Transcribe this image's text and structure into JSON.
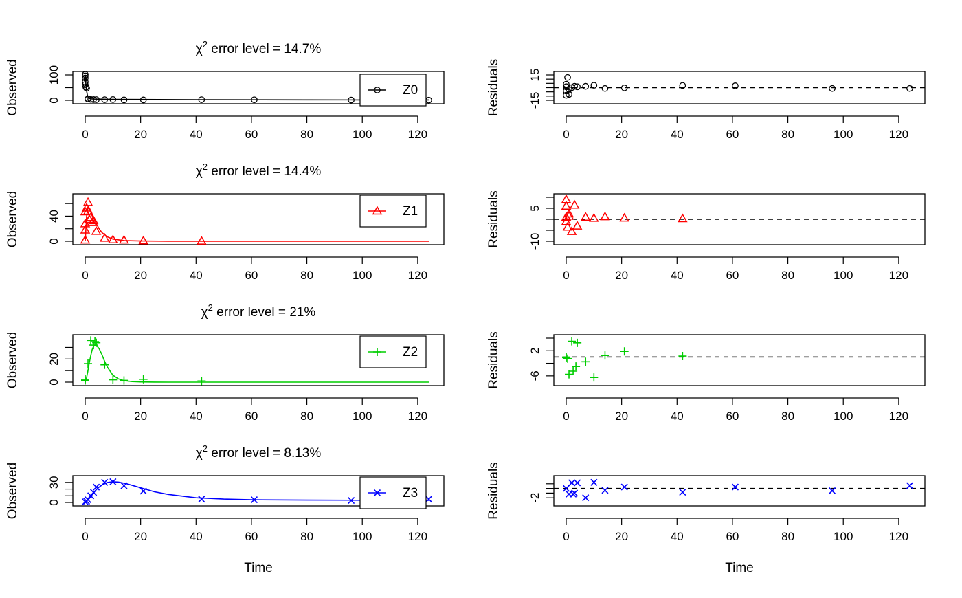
{
  "chart_data": [
    {
      "type": "scatter",
      "panel": "observed",
      "title_prefix": "χ",
      "title_superscript": "2",
      "title_text": " error level = 14.7%",
      "xlabel": "",
      "ylabel": "Observed",
      "xlim": [
        0,
        124
      ],
      "ylim": [
        0,
        100
      ],
      "x_ticks": [
        "0",
        "20",
        "40",
        "60",
        "80",
        "100",
        "120"
      ],
      "y_ticks": [
        "0",
        "50",
        "100"
      ],
      "y_tick_values": [
        0,
        50,
        100
      ],
      "y_tick_labels": [
        "0",
        "",
        "100"
      ],
      "legend": {
        "label": "Z0",
        "position": "top-right"
      },
      "color": "#000000",
      "symbol": "circle",
      "series": [
        {
          "name": "Z0",
          "x": [
            0,
            0,
            0,
            0,
            0,
            0.25,
            0.5,
            1,
            1,
            2,
            3,
            4,
            7,
            10,
            14,
            21,
            42,
            61,
            96,
            124
          ],
          "y": [
            102,
            96,
            88,
            72,
            62,
            52,
            48,
            6,
            5,
            3.5,
            3,
            2.8,
            2.6,
            3.1,
            1.8,
            1.6,
            2.6,
            2.1,
            1.1,
            0.7
          ]
        }
      ],
      "fit_line": {
        "x": [
          0,
          0.25,
          0.5,
          0.75,
          1,
          1.5,
          2,
          3,
          4,
          6,
          10,
          20,
          40,
          60,
          80,
          100,
          124
        ],
        "y": [
          100,
          62,
          38,
          22,
          13,
          7.5,
          6,
          5.2,
          4.9,
          4.5,
          4.0,
          3.4,
          2.6,
          2.2,
          1.9,
          1.7,
          1.5
        ]
      }
    },
    {
      "type": "scatter",
      "panel": "residuals",
      "title_text": "",
      "xlabel": "",
      "ylabel": "Residuals",
      "xlim": [
        0,
        124
      ],
      "ylim": [
        -15,
        15
      ],
      "x_ticks": [
        "0",
        "20",
        "40",
        "60",
        "80",
        "100",
        "120"
      ],
      "y_ticks": [
        "-15",
        "15"
      ],
      "y_tick_values": [
        -15,
        -10,
        -5,
        0,
        5,
        10,
        15
      ],
      "y_tick_labels": [
        "-15",
        "",
        "",
        "",
        "",
        "",
        "15"
      ],
      "zero_line": 0,
      "color": "#000000",
      "symbol": "circle",
      "series": [
        {
          "name": "Z0",
          "x": [
            0,
            0,
            0,
            0,
            0.5,
            1,
            1,
            2,
            3,
            4,
            7,
            10,
            14,
            21,
            42,
            61,
            96,
            124
          ],
          "y": [
            -9,
            -4,
            1,
            4,
            12,
            -8,
            -2,
            0,
            1.5,
            1,
            1.5,
            2.7,
            -1,
            -0.3,
            2.5,
            2.1,
            -1,
            -1
          ]
        }
      ]
    },
    {
      "type": "scatter",
      "panel": "observed",
      "title_prefix": "χ",
      "title_superscript": "2",
      "title_text": " error level = 14.4%",
      "xlabel": "",
      "ylabel": "Observed",
      "xlim": [
        0,
        124
      ],
      "ylim": [
        0,
        70
      ],
      "x_ticks": [
        "0",
        "20",
        "40",
        "60",
        "80",
        "100",
        "120"
      ],
      "y_ticks": [
        "0",
        "40"
      ],
      "y_tick_values": [
        0,
        20,
        40,
        60
      ],
      "y_tick_labels": [
        "0",
        "",
        "40",
        ""
      ],
      "legend": {
        "label": "Z1",
        "position": "top-right"
      },
      "color": "#ff0000",
      "symbol": "triangle",
      "series": [
        {
          "name": "Z1",
          "x": [
            0,
            0,
            0,
            0,
            0.5,
            1,
            1,
            1.5,
            2,
            2.5,
            3,
            4,
            7,
            10,
            14,
            21,
            42
          ],
          "y": [
            2,
            18,
            28,
            47,
            53,
            62,
            48,
            35,
            38,
            30,
            33,
            16,
            5,
            2.5,
            2,
            0.8,
            0.4
          ]
        }
      ],
      "fit_line": {
        "x": [
          0,
          0.5,
          1,
          1.5,
          2,
          3,
          4,
          5,
          6,
          8,
          10,
          14,
          20,
          30,
          42,
          60,
          124
        ],
        "y": [
          0,
          40,
          54,
          53,
          49,
          38,
          28,
          20,
          14,
          7,
          3.5,
          1.2,
          0.4,
          0.1,
          0.05,
          0,
          0
        ]
      }
    },
    {
      "type": "scatter",
      "panel": "residuals",
      "title_text": "",
      "xlabel": "",
      "ylabel": "Residuals",
      "xlim": [
        0,
        124
      ],
      "ylim": [
        -10,
        10
      ],
      "x_ticks": [
        "0",
        "20",
        "40",
        "60",
        "80",
        "100",
        "120"
      ],
      "y_ticks": [
        "-10",
        "5"
      ],
      "y_tick_values": [
        -10,
        -5,
        0,
        5,
        10
      ],
      "y_tick_labels": [
        "-10",
        "",
        "",
        "5",
        ""
      ],
      "zero_line": 0,
      "color": "#ff0000",
      "symbol": "triangle",
      "series": [
        {
          "name": "Z1",
          "x": [
            0,
            0,
            0,
            0,
            0.5,
            1,
            1,
            2,
            3,
            4,
            7,
            10,
            14,
            21,
            42
          ],
          "y": [
            9,
            6,
            1,
            -1,
            -3.5,
            2.5,
            1.5,
            -5.5,
            6.5,
            -3,
            1,
            0.5,
            1.2,
            0.6,
            0.3
          ]
        }
      ]
    },
    {
      "type": "scatter",
      "panel": "observed",
      "title_prefix": "χ",
      "title_superscript": "2",
      "title_text": " error level = 21%",
      "xlabel": "",
      "ylabel": "Observed",
      "xlim": [
        0,
        124
      ],
      "ylim": [
        0,
        38
      ],
      "x_ticks": [
        "0",
        "20",
        "40",
        "60",
        "80",
        "100",
        "120"
      ],
      "y_ticks": [
        "0",
        "20"
      ],
      "y_tick_values": [
        0,
        10,
        20,
        30
      ],
      "y_tick_labels": [
        "0",
        "",
        "20",
        ""
      ],
      "legend": {
        "label": "Z2",
        "position": "top-right"
      },
      "color": "#00cd00",
      "symbol": "plus",
      "series": [
        {
          "name": "Z2",
          "x": [
            0,
            0,
            1,
            2,
            3,
            3.5,
            4,
            7,
            10,
            14,
            21,
            42
          ],
          "y": [
            2.5,
            1.5,
            16,
            36,
            32,
            35,
            34,
            15,
            2,
            1.5,
            2.5,
            1
          ]
        }
      ],
      "fit_line": {
        "x": [
          0,
          0.5,
          1,
          1.5,
          2,
          2.5,
          3,
          4,
          5,
          6,
          7,
          8,
          10,
          12,
          14,
          17,
          20,
          25,
          30,
          42,
          60,
          124
        ],
        "y": [
          0,
          4,
          10,
          17,
          23,
          28,
          31,
          32,
          29,
          24,
          18,
          13,
          6,
          2.8,
          1.3,
          0.5,
          0.2,
          0.05,
          0,
          0,
          0,
          0
        ]
      }
    },
    {
      "type": "scatter",
      "panel": "residuals",
      "title_text": "",
      "xlabel": "",
      "ylabel": "Residuals",
      "xlim": [
        0,
        124
      ],
      "ylim": [
        -8,
        6
      ],
      "x_ticks": [
        "0",
        "20",
        "40",
        "60",
        "80",
        "100",
        "120"
      ],
      "y_ticks": [
        "-6",
        "2"
      ],
      "y_tick_values": [
        -6,
        -2,
        2,
        6
      ],
      "y_tick_labels": [
        "-6",
        "",
        "2",
        ""
      ],
      "zero_line": 0,
      "color": "#00cd00",
      "symbol": "plus",
      "series": [
        {
          "name": "Z2",
          "x": [
            0,
            0,
            0.5,
            1,
            2,
            2.5,
            3.5,
            4,
            7,
            10,
            14,
            21,
            42
          ],
          "y": [
            0,
            -0.2,
            -0.5,
            -5.5,
            5,
            -4.5,
            -3,
            4.5,
            -1.5,
            -6.5,
            0.5,
            1.8,
            0.3
          ]
        }
      ]
    },
    {
      "type": "scatter",
      "panel": "observed",
      "title_prefix": "χ",
      "title_superscript": "2",
      "title_text": " error level = 8.13%",
      "xlabel": "Time",
      "ylabel": "Observed",
      "xlim": [
        0,
        124
      ],
      "ylim": [
        0,
        35
      ],
      "x_ticks": [
        "0",
        "20",
        "40",
        "60",
        "80",
        "100",
        "120"
      ],
      "y_ticks": [
        "0",
        "30"
      ],
      "y_tick_values": [
        0,
        10,
        20,
        30
      ],
      "y_tick_labels": [
        "0",
        "",
        "",
        "30"
      ],
      "legend": {
        "label": "Z3",
        "position": "top-right"
      },
      "color": "#0000ff",
      "symbol": "cross",
      "series": [
        {
          "name": "Z3",
          "x": [
            0,
            0.5,
            1,
            2,
            3,
            4,
            7,
            10,
            14,
            21,
            42,
            61,
            96,
            124
          ],
          "y": [
            1,
            2,
            4,
            10,
            15,
            23,
            30,
            31,
            25,
            17,
            5,
            4,
            3,
            5
          ]
        }
      ],
      "fit_line": {
        "x": [
          0,
          1,
          2,
          3,
          4,
          5,
          6,
          8,
          10,
          12,
          15,
          20,
          25,
          30,
          40,
          50,
          60,
          80,
          100,
          124
        ],
        "y": [
          0,
          4,
          9,
          14,
          19,
          23,
          26,
          30,
          31,
          30.5,
          28,
          22,
          16,
          12,
          7,
          5,
          4,
          3.5,
          3.3,
          3.2
        ]
      }
    },
    {
      "type": "scatter",
      "panel": "residuals",
      "title_text": "",
      "xlabel": "Time",
      "ylabel": "Residuals",
      "xlim": [
        0,
        124
      ],
      "ylim": [
        -3,
        2
      ],
      "x_ticks": [
        "0",
        "20",
        "40",
        "60",
        "80",
        "100",
        "120"
      ],
      "y_ticks": [
        "-2"
      ],
      "y_tick_values": [
        -2,
        -1,
        0,
        1
      ],
      "y_tick_labels": [
        "-2",
        "",
        "",
        ""
      ],
      "zero_line": 0,
      "color": "#0000ff",
      "symbol": "cross",
      "series": [
        {
          "name": "Z3",
          "x": [
            0,
            1,
            2,
            2.5,
            3,
            4,
            7,
            10,
            14,
            21,
            42,
            61,
            96,
            124
          ],
          "y": [
            0,
            -1.2,
            1.2,
            -1.2,
            -1,
            1.2,
            -2,
            1.3,
            -0.4,
            0.3,
            -0.8,
            0.3,
            -0.5,
            0.6
          ]
        }
      ]
    }
  ]
}
